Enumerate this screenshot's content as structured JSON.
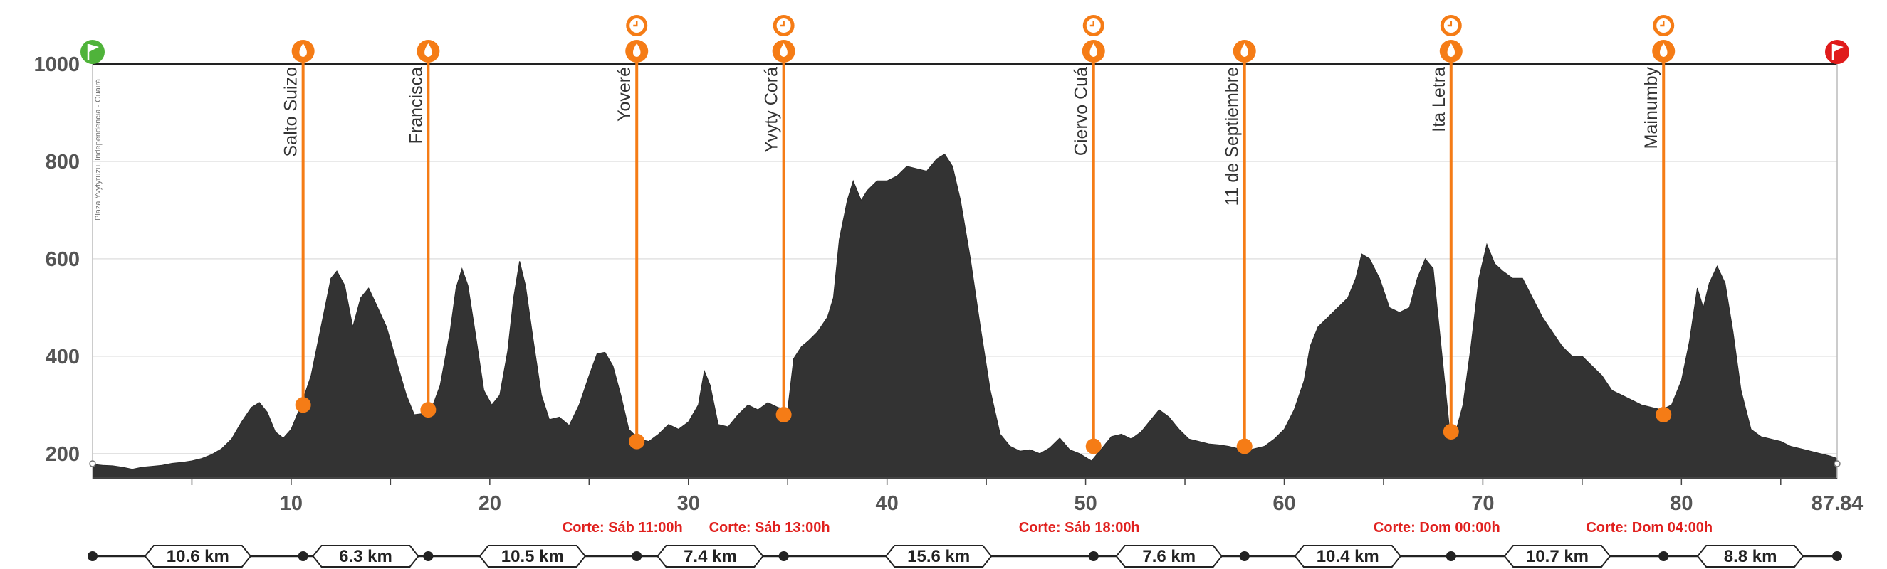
{
  "chart_data": {
    "type": "area",
    "title": "",
    "xlabel": "",
    "ylabel": "",
    "xlim": [
      0,
      87.84
    ],
    "ylim": [
      150,
      1000
    ],
    "y_ticks": [
      200,
      400,
      600,
      800,
      1000
    ],
    "x_ticks": [
      10,
      20,
      30,
      40,
      50,
      60,
      70,
      80
    ],
    "x_end_label": "87.84",
    "grid": true,
    "fill_color": "#333333",
    "accent_color": "#f57c16",
    "start_flag_color": "#4fb33a",
    "finish_flag_color": "#e01b1b",
    "cutoff_color": "#e0201e",
    "start_label": "Plaza Yvytyruzu, Independencia - Guairá",
    "profile": [
      [
        0,
        178
      ],
      [
        0.5,
        176
      ],
      [
        1,
        175
      ],
      [
        1.5,
        172
      ],
      [
        2,
        168
      ],
      [
        2.5,
        172
      ],
      [
        3,
        174
      ],
      [
        3.5,
        176
      ],
      [
        4,
        180
      ],
      [
        4.5,
        182
      ],
      [
        5,
        185
      ],
      [
        5.5,
        190
      ],
      [
        6,
        198
      ],
      [
        6.5,
        210
      ],
      [
        7,
        230
      ],
      [
        7.5,
        265
      ],
      [
        8,
        295
      ],
      [
        8.4,
        305
      ],
      [
        8.8,
        285
      ],
      [
        9.2,
        245
      ],
      [
        9.6,
        232
      ],
      [
        10,
        250
      ],
      [
        10.5,
        300
      ],
      [
        11,
        360
      ],
      [
        11.5,
        460
      ],
      [
        12,
        560
      ],
      [
        12.3,
        575
      ],
      [
        12.7,
        545
      ],
      [
        13.1,
        460
      ],
      [
        13.5,
        520
      ],
      [
        13.9,
        540
      ],
      [
        14.3,
        505
      ],
      [
        14.8,
        460
      ],
      [
        15.3,
        390
      ],
      [
        15.8,
        320
      ],
      [
        16.2,
        280
      ],
      [
        16.6,
        282
      ],
      [
        17,
        285
      ],
      [
        17.5,
        340
      ],
      [
        18,
        450
      ],
      [
        18.3,
        540
      ],
      [
        18.6,
        580
      ],
      [
        18.9,
        545
      ],
      [
        19.3,
        440
      ],
      [
        19.7,
        330
      ],
      [
        20.1,
        300
      ],
      [
        20.5,
        320
      ],
      [
        20.9,
        410
      ],
      [
        21.2,
        520
      ],
      [
        21.5,
        595
      ],
      [
        21.8,
        545
      ],
      [
        22.2,
        430
      ],
      [
        22.6,
        320
      ],
      [
        23,
        270
      ],
      [
        23.5,
        275
      ],
      [
        24,
        258
      ],
      [
        24.5,
        300
      ],
      [
        25,
        360
      ],
      [
        25.4,
        405
      ],
      [
        25.8,
        408
      ],
      [
        26.2,
        380
      ],
      [
        26.6,
        320
      ],
      [
        27,
        250
      ],
      [
        27.5,
        230
      ],
      [
        28,
        225
      ],
      [
        28.5,
        240
      ],
      [
        29,
        260
      ],
      [
        29.5,
        250
      ],
      [
        30,
        265
      ],
      [
        30.5,
        300
      ],
      [
        30.8,
        370
      ],
      [
        31.1,
        340
      ],
      [
        31.5,
        260
      ],
      [
        32,
        255
      ],
      [
        32.5,
        280
      ],
      [
        33,
        300
      ],
      [
        33.5,
        290
      ],
      [
        34,
        305
      ],
      [
        34.5,
        295
      ],
      [
        35,
        290
      ],
      [
        35.3,
        395
      ],
      [
        35.7,
        420
      ],
      [
        36,
        430
      ],
      [
        36.5,
        450
      ],
      [
        37,
        480
      ],
      [
        37.3,
        520
      ],
      [
        37.6,
        640
      ],
      [
        38,
        720
      ],
      [
        38.3,
        760
      ],
      [
        38.7,
        720
      ],
      [
        39,
        740
      ],
      [
        39.5,
        760
      ],
      [
        40,
        760
      ],
      [
        40.5,
        770
      ],
      [
        41,
        790
      ],
      [
        41.5,
        785
      ],
      [
        42,
        780
      ],
      [
        42.5,
        805
      ],
      [
        42.9,
        815
      ],
      [
        43.3,
        790
      ],
      [
        43.7,
        720
      ],
      [
        44.2,
        600
      ],
      [
        44.7,
        460
      ],
      [
        45.2,
        330
      ],
      [
        45.7,
        240
      ],
      [
        46.2,
        215
      ],
      [
        46.7,
        205
      ],
      [
        47.2,
        208
      ],
      [
        47.7,
        200
      ],
      [
        48.2,
        212
      ],
      [
        48.7,
        232
      ],
      [
        49.2,
        208
      ],
      [
        49.7,
        200
      ],
      [
        50.3,
        185
      ],
      [
        50.8,
        210
      ],
      [
        51.3,
        235
      ],
      [
        51.8,
        240
      ],
      [
        52.3,
        230
      ],
      [
        52.8,
        245
      ],
      [
        53.3,
        270
      ],
      [
        53.7,
        290
      ],
      [
        54.2,
        275
      ],
      [
        54.7,
        250
      ],
      [
        55.2,
        230
      ],
      [
        55.7,
        225
      ],
      [
        56.2,
        220
      ],
      [
        56.7,
        218
      ],
      [
        57.2,
        215
      ],
      [
        57.7,
        210
      ],
      [
        58,
        205
      ],
      [
        58.5,
        210
      ],
      [
        59,
        215
      ],
      [
        59.5,
        230
      ],
      [
        60,
        250
      ],
      [
        60.5,
        290
      ],
      [
        61,
        350
      ],
      [
        61.3,
        420
      ],
      [
        61.7,
        460
      ],
      [
        62.2,
        480
      ],
      [
        62.7,
        500
      ],
      [
        63.2,
        520
      ],
      [
        63.6,
        560
      ],
      [
        63.9,
        610
      ],
      [
        64.3,
        600
      ],
      [
        64.8,
        560
      ],
      [
        65.3,
        500
      ],
      [
        65.8,
        490
      ],
      [
        66.3,
        500
      ],
      [
        66.7,
        560
      ],
      [
        67.1,
        600
      ],
      [
        67.5,
        580
      ],
      [
        67.9,
        420
      ],
      [
        68.3,
        260
      ],
      [
        68.6,
        240
      ],
      [
        69,
        300
      ],
      [
        69.4,
        420
      ],
      [
        69.8,
        560
      ],
      [
        70.2,
        630
      ],
      [
        70.6,
        590
      ],
      [
        71,
        575
      ],
      [
        71.5,
        560
      ],
      [
        72,
        560
      ],
      [
        72.5,
        520
      ],
      [
        73,
        480
      ],
      [
        73.5,
        450
      ],
      [
        74,
        420
      ],
      [
        74.5,
        400
      ],
      [
        75,
        400
      ],
      [
        75.5,
        380
      ],
      [
        76,
        360
      ],
      [
        76.5,
        330
      ],
      [
        77,
        320
      ],
      [
        77.5,
        310
      ],
      [
        78,
        300
      ],
      [
        78.5,
        295
      ],
      [
        79,
        290
      ],
      [
        79.5,
        300
      ],
      [
        80,
        350
      ],
      [
        80.4,
        430
      ],
      [
        80.8,
        540
      ],
      [
        81.1,
        500
      ],
      [
        81.4,
        550
      ],
      [
        81.8,
        585
      ],
      [
        82.2,
        550
      ],
      [
        82.6,
        450
      ],
      [
        83,
        330
      ],
      [
        83.5,
        250
      ],
      [
        84,
        235
      ],
      [
        84.5,
        230
      ],
      [
        85,
        225
      ],
      [
        85.5,
        215
      ],
      [
        86,
        210
      ],
      [
        86.5,
        205
      ],
      [
        87,
        200
      ],
      [
        87.5,
        195
      ],
      [
        87.84,
        190
      ]
    ],
    "aid_stations": [
      {
        "name": "Salto Suizo",
        "km": 10.6,
        "alt": 300,
        "clock": false
      },
      {
        "name": "Francisca",
        "km": 16.9,
        "alt": 290,
        "clock": false
      },
      {
        "name": "Yoveré",
        "km": 27.4,
        "alt": 225,
        "clock": true
      },
      {
        "name": "Yvyty Corá",
        "km": 34.8,
        "alt": 280,
        "clock": true
      },
      {
        "name": "Ciervo Cuá",
        "km": 50.4,
        "alt": 215,
        "clock": true
      },
      {
        "name": "11 de Septiembre",
        "km": 58.0,
        "alt": 215,
        "clock": false
      },
      {
        "name": "Ita Letra",
        "km": 68.4,
        "alt": 245,
        "clock": true
      },
      {
        "name": "Mainumby",
        "km": 79.1,
        "alt": 280,
        "clock": true
      }
    ],
    "cutoffs": [
      {
        "text": "Corte: Sáb 11:00h",
        "km": 27.4
      },
      {
        "text": "Corte: Sáb 13:00h",
        "km": 34.8
      },
      {
        "text": "Corte: Sáb 18:00h",
        "km": 50.4
      },
      {
        "text": "Corte: Dom 00:00h",
        "km": 68.4
      },
      {
        "text": "Corte: Dom 04:00h",
        "km": 79.1
      }
    ],
    "segments": [
      {
        "label": "10.6 km"
      },
      {
        "label": "6.3 km"
      },
      {
        "label": "10.5 km"
      },
      {
        "label": "7.4 km"
      },
      {
        "label": "15.6 km"
      },
      {
        "label": "7.6 km"
      },
      {
        "label": "10.4 km"
      },
      {
        "label": "10.7 km"
      },
      {
        "label": "8.8 km"
      }
    ],
    "segment_points_km": [
      0,
      10.6,
      16.9,
      27.4,
      34.8,
      50.4,
      58.0,
      68.4,
      79.1,
      87.84
    ]
  }
}
